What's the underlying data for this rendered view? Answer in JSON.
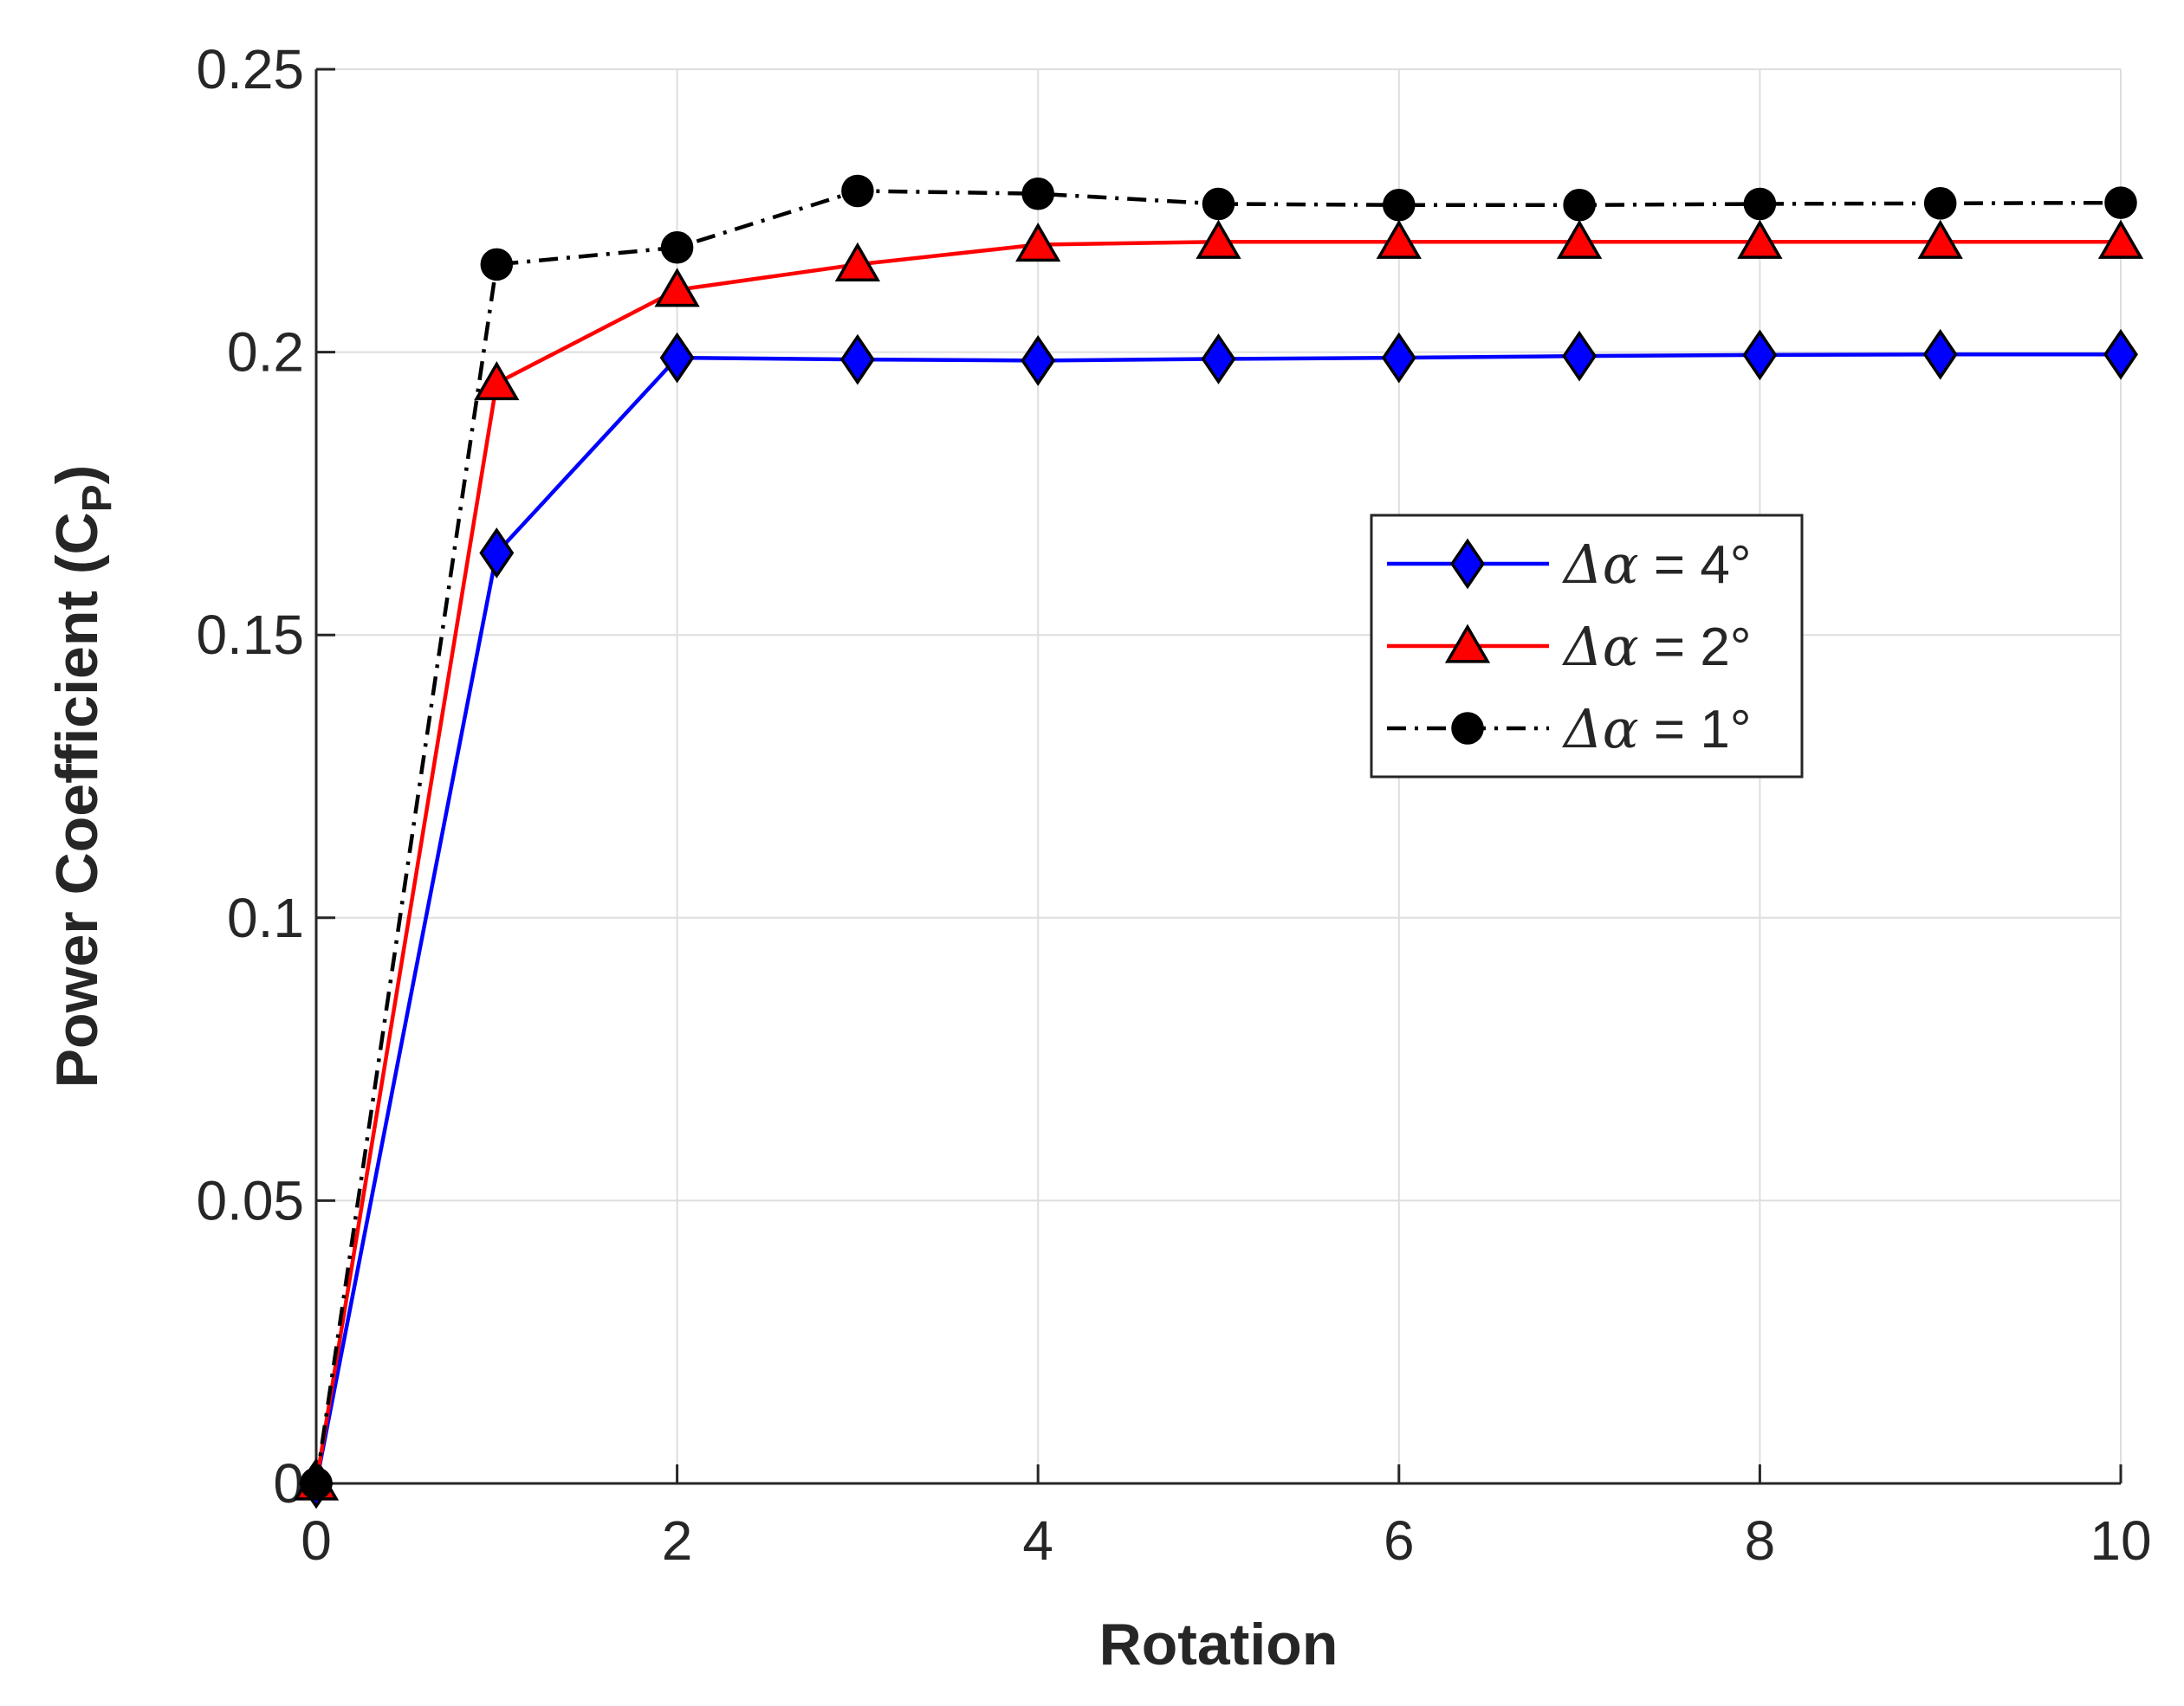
{
  "chart_data": {
    "type": "line",
    "title": "",
    "xlabel": "Rotation",
    "ylabel": "Power Coefficient (C",
    "ylabel_sub": "P",
    "ylabel_close": ")",
    "xlim": [
      0,
      10
    ],
    "ylim": [
      0,
      0.25
    ],
    "x_ticks": [
      0,
      2,
      4,
      6,
      8,
      10
    ],
    "x_tick_labels": [
      "0",
      "2",
      "4",
      "6",
      "8",
      "10"
    ],
    "y_ticks": [
      0,
      0.05,
      0.1,
      0.15,
      0.2,
      0.25
    ],
    "y_tick_labels": [
      "0",
      "0.05",
      "0.1",
      "0.15",
      "0.2",
      "0.25"
    ],
    "grid": true,
    "legend_position": "center-right",
    "x": [
      0,
      1,
      2,
      3,
      4,
      5,
      6,
      7,
      8,
      9,
      10
    ],
    "series": [
      {
        "name": "Δα = 4°",
        "name_prefix": "Δα",
        "name_suffix": " = 4°",
        "color": "#0000ff",
        "marker": "diamond",
        "marker_color": "#0000ff",
        "line_style": "solid",
        "values": [
          0,
          0.1645,
          0.199,
          0.1987,
          0.1985,
          0.1988,
          0.199,
          0.1993,
          0.1995,
          0.1996,
          0.1996
        ]
      },
      {
        "name": "Δα = 2°",
        "name_prefix": "Δα",
        "name_suffix": " = 2°",
        "color": "#ff0000",
        "marker": "triangle",
        "marker_color": "#ff0000",
        "line_style": "solid",
        "values": [
          0,
          0.1945,
          0.211,
          0.2155,
          0.219,
          0.2195,
          0.2195,
          0.2195,
          0.2195,
          0.2195,
          0.2195
        ]
      },
      {
        "name": "Δα = 1°",
        "name_prefix": "Δα",
        "name_suffix": " = 1°",
        "color": "#000000",
        "marker": "circle",
        "marker_color": "#000000",
        "line_style": "dashdot",
        "values": [
          0,
          0.2155,
          0.2185,
          0.2285,
          0.228,
          0.2262,
          0.226,
          0.226,
          0.2262,
          0.2263,
          0.2264
        ]
      }
    ]
  }
}
